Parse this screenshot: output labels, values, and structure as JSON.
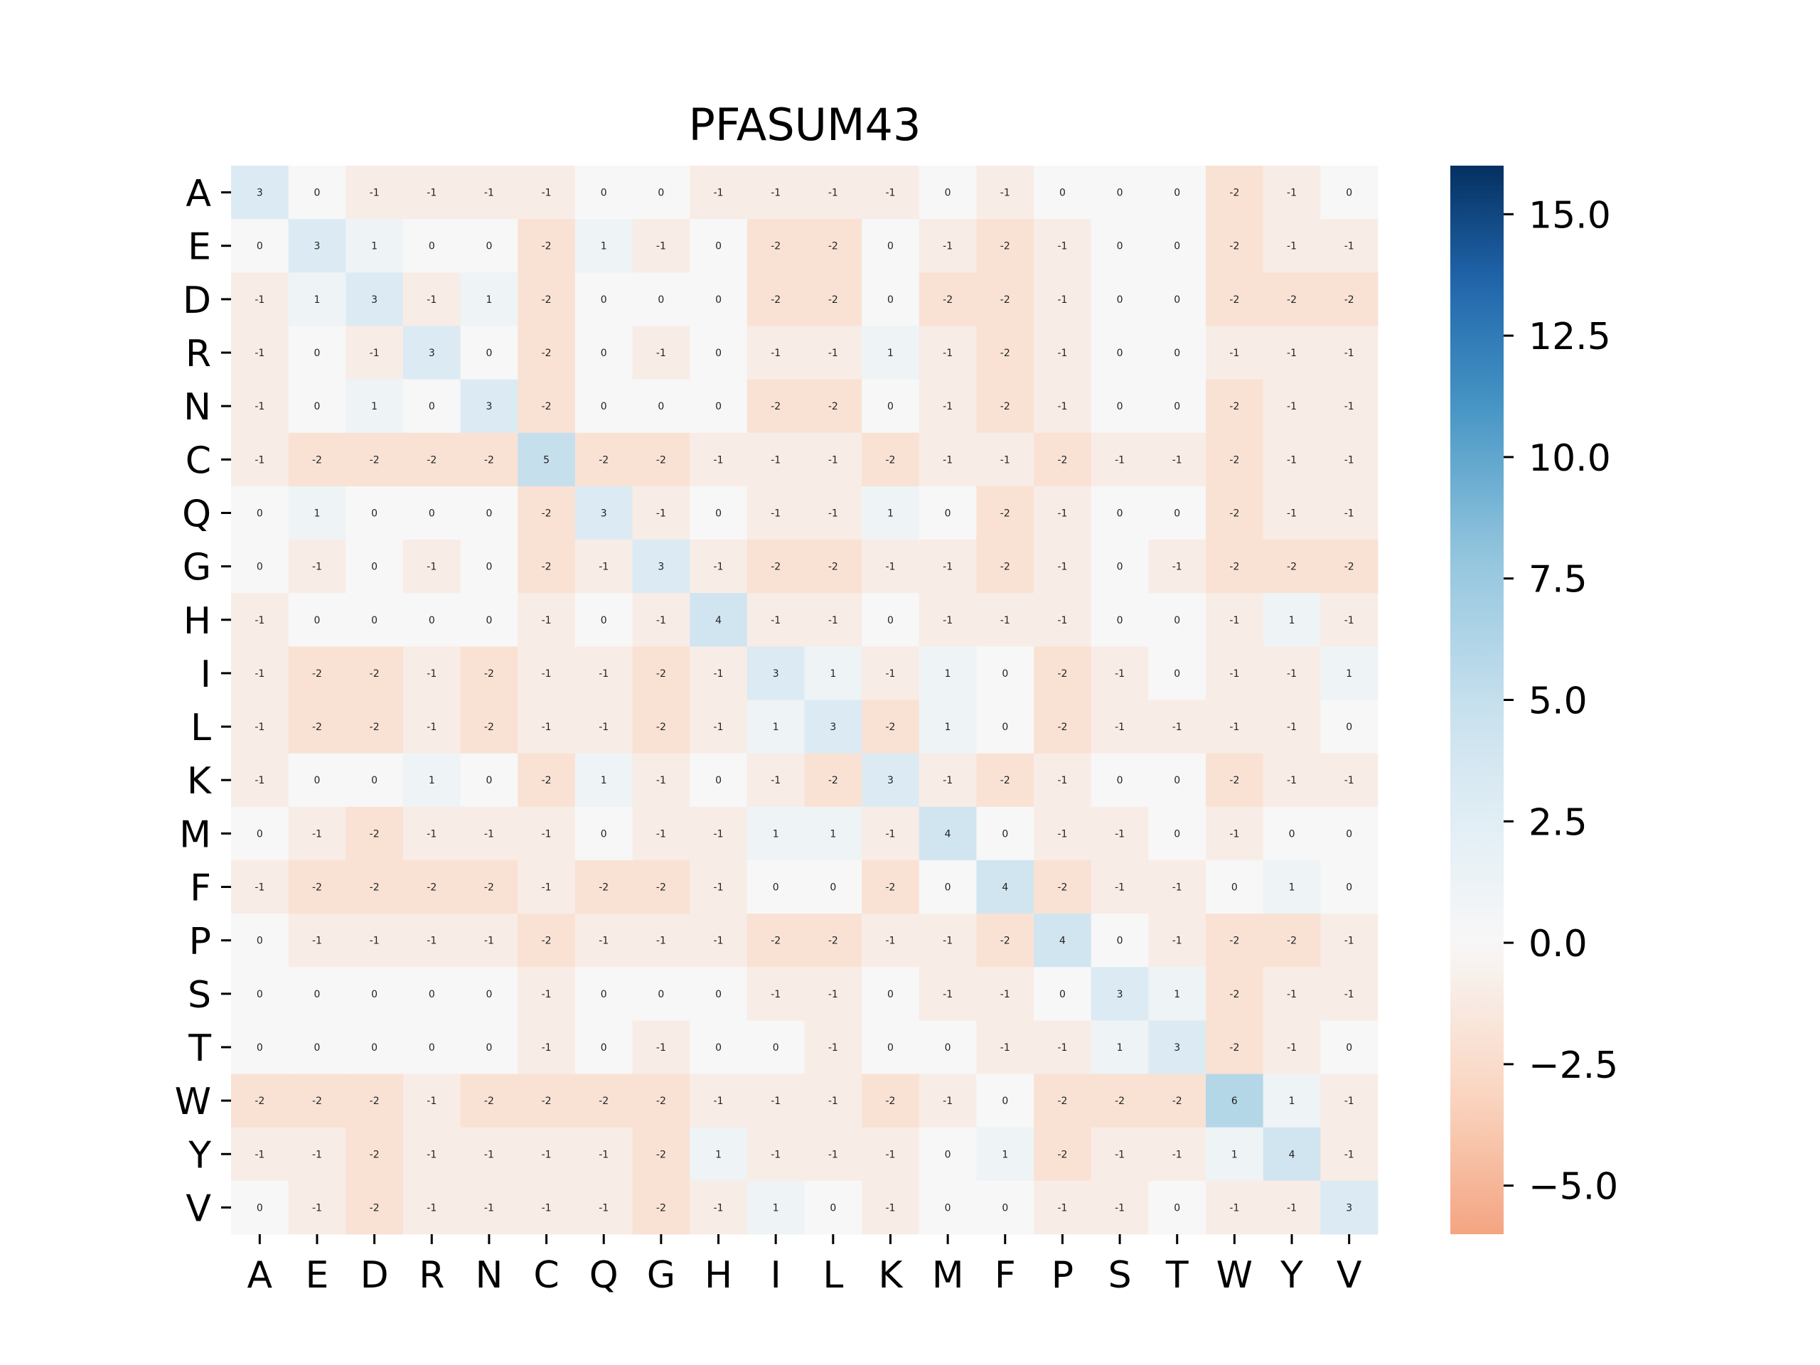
{
  "chart_data": {
    "type": "heatmap",
    "title": "PFASUM43",
    "x_labels": [
      "A",
      "E",
      "D",
      "R",
      "N",
      "C",
      "Q",
      "G",
      "H",
      "I",
      "L",
      "K",
      "M",
      "F",
      "P",
      "S",
      "T",
      "W",
      "Y",
      "V"
    ],
    "y_labels": [
      "A",
      "E",
      "D",
      "R",
      "N",
      "C",
      "Q",
      "G",
      "H",
      "I",
      "L",
      "K",
      "M",
      "F",
      "P",
      "S",
      "T",
      "W",
      "Y",
      "V"
    ],
    "values": [
      [
        3,
        0,
        -1,
        -1,
        -1,
        -1,
        0,
        0,
        -1,
        -1,
        -1,
        -1,
        0,
        -1,
        0,
        0,
        0,
        -2,
        -1,
        0
      ],
      [
        0,
        3,
        1,
        0,
        0,
        -2,
        1,
        -1,
        0,
        -2,
        -2,
        0,
        -1,
        -2,
        -1,
        0,
        0,
        -2,
        -1,
        -1
      ],
      [
        -1,
        1,
        3,
        -1,
        1,
        -2,
        0,
        0,
        0,
        -2,
        -2,
        0,
        -2,
        -2,
        -1,
        0,
        0,
        -2,
        -2,
        -2
      ],
      [
        -1,
        0,
        -1,
        3,
        0,
        -2,
        0,
        -1,
        0,
        -1,
        -1,
        1,
        -1,
        -2,
        -1,
        0,
        0,
        -1,
        -1,
        -1
      ],
      [
        -1,
        0,
        1,
        0,
        3,
        -2,
        0,
        0,
        0,
        -2,
        -2,
        0,
        -1,
        -2,
        -1,
        0,
        0,
        -2,
        -1,
        -1
      ],
      [
        -1,
        -2,
        -2,
        -2,
        -2,
        5,
        -2,
        -2,
        -1,
        -1,
        -1,
        -2,
        -1,
        -1,
        -2,
        -1,
        -1,
        -2,
        -1,
        -1
      ],
      [
        0,
        1,
        0,
        0,
        0,
        -2,
        3,
        -1,
        0,
        -1,
        -1,
        1,
        0,
        -2,
        -1,
        0,
        0,
        -2,
        -1,
        -1
      ],
      [
        0,
        -1,
        0,
        -1,
        0,
        -2,
        -1,
        3,
        -1,
        -2,
        -2,
        -1,
        -1,
        -2,
        -1,
        0,
        -1,
        -2,
        -2,
        -2
      ],
      [
        -1,
        0,
        0,
        0,
        0,
        -1,
        0,
        -1,
        4,
        -1,
        -1,
        0,
        -1,
        -1,
        -1,
        0,
        0,
        -1,
        1,
        -1
      ],
      [
        -1,
        -2,
        -2,
        -1,
        -2,
        -1,
        -1,
        -2,
        -1,
        3,
        1,
        -1,
        1,
        0,
        -2,
        -1,
        0,
        -1,
        -1,
        1
      ],
      [
        -1,
        -2,
        -2,
        -1,
        -2,
        -1,
        -1,
        -2,
        -1,
        1,
        3,
        -2,
        1,
        0,
        -2,
        -1,
        -1,
        -1,
        -1,
        0
      ],
      [
        -1,
        0,
        0,
        1,
        0,
        -2,
        1,
        -1,
        0,
        -1,
        -2,
        3,
        -1,
        -2,
        -1,
        0,
        0,
        -2,
        -1,
        -1
      ],
      [
        0,
        -1,
        -2,
        -1,
        -1,
        -1,
        0,
        -1,
        -1,
        1,
        1,
        -1,
        4,
        0,
        -1,
        -1,
        0,
        -1,
        0,
        0
      ],
      [
        -1,
        -2,
        -2,
        -2,
        -2,
        -1,
        -2,
        -2,
        -1,
        0,
        0,
        -2,
        0,
        4,
        -2,
        -1,
        -1,
        0,
        1,
        0
      ],
      [
        0,
        -1,
        -1,
        -1,
        -1,
        -2,
        -1,
        -1,
        -1,
        -2,
        -2,
        -1,
        -1,
        -2,
        4,
        0,
        -1,
        -2,
        -2,
        -1
      ],
      [
        0,
        0,
        0,
        0,
        0,
        -1,
        0,
        0,
        0,
        -1,
        -1,
        0,
        -1,
        -1,
        0,
        3,
        1,
        -2,
        -1,
        -1
      ],
      [
        0,
        0,
        0,
        0,
        0,
        -1,
        0,
        -1,
        0,
        0,
        -1,
        0,
        0,
        -1,
        -1,
        1,
        3,
        -2,
        -1,
        0
      ],
      [
        -2,
        -2,
        -2,
        -1,
        -2,
        -2,
        -2,
        -2,
        -1,
        -1,
        -1,
        -2,
        -1,
        0,
        -2,
        -2,
        -2,
        6,
        1,
        -1
      ],
      [
        -1,
        -1,
        -2,
        -1,
        -1,
        -1,
        -1,
        -2,
        1,
        -1,
        -1,
        -1,
        0,
        1,
        -2,
        -1,
        -1,
        1,
        4,
        -1
      ],
      [
        0,
        -1,
        -2,
        -1,
        -1,
        -1,
        -1,
        -2,
        -1,
        1,
        0,
        -1,
        0,
        0,
        -1,
        -1,
        0,
        -1,
        -1,
        3
      ]
    ],
    "colorbar": {
      "vmin": -6,
      "vmax": 16,
      "colormap": "RdBu (centered at 0)",
      "ticks": [
        -5,
        -2.5,
        0,
        2.5,
        5,
        7.5,
        10,
        12.5,
        15
      ],
      "tick_labels": [
        "−5.0",
        "−2.5",
        "0.0",
        "2.5",
        "5.0",
        "7.5",
        "10.0",
        "12.5",
        "15.0"
      ]
    },
    "grid": false
  }
}
